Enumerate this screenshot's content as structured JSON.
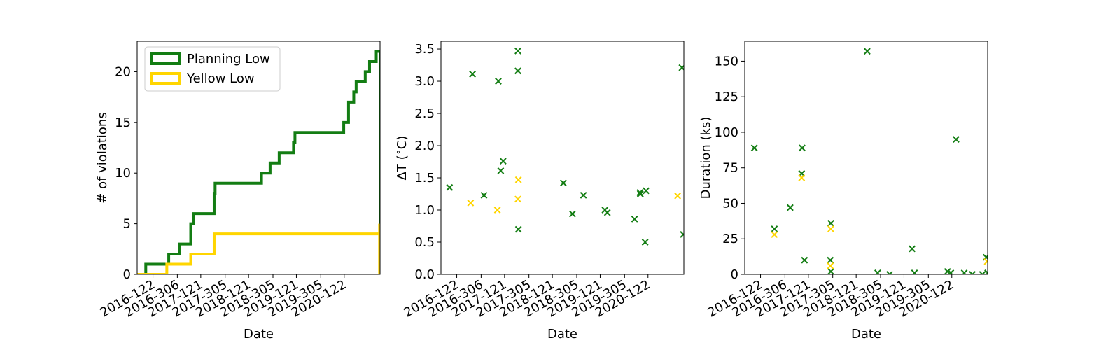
{
  "chart_data": [
    {
      "type": "line",
      "step": true,
      "xlabel": "Date",
      "ylabel": "# of violations",
      "xlim": [
        2016.0,
        2021.08
      ],
      "ylim": [
        0,
        23
      ],
      "xticks": [
        {
          "value": 2016.33,
          "label": "2016-122"
        },
        {
          "value": 2016.84,
          "label": "2016-306"
        },
        {
          "value": 2017.33,
          "label": "2017-121"
        },
        {
          "value": 2017.84,
          "label": "2017-305"
        },
        {
          "value": 2018.33,
          "label": "2018-121"
        },
        {
          "value": 2018.84,
          "label": "2018-305"
        },
        {
          "value": 2019.33,
          "label": "2019-121"
        },
        {
          "value": 2019.84,
          "label": "2019-305"
        },
        {
          "value": 2020.33,
          "label": "2020-122"
        }
      ],
      "yticks": [
        0,
        5,
        10,
        15,
        20
      ],
      "legend": {
        "placement": "top-left"
      },
      "series": [
        {
          "name": "Planning Low",
          "color": "#137d13",
          "x": [
            2016.0,
            2016.18,
            2016.66,
            2016.88,
            2017.12,
            2017.18,
            2017.61,
            2017.63,
            2018.6,
            2018.78,
            2018.97,
            2019.27,
            2019.3,
            2020.32,
            2020.42,
            2020.53,
            2020.58,
            2020.64,
            2020.77,
            2020.82,
            2020.86,
            2021.0,
            2021.08,
            2021.08
          ],
          "y": [
            0,
            1,
            2,
            3,
            5,
            6,
            8,
            9,
            10,
            11,
            12,
            13,
            14,
            15,
            17,
            18,
            19,
            19,
            20,
            20,
            21,
            22,
            22,
            0
          ]
        },
        {
          "name": "Yellow Low",
          "color": "#ffd500",
          "x": [
            2016.0,
            2016.62,
            2017.12,
            2017.61,
            2021.07,
            2021.07
          ],
          "y": [
            0,
            1,
            2,
            4,
            5,
            0
          ]
        }
      ]
    },
    {
      "type": "scatter",
      "marker": "x",
      "xlabel": "Date",
      "ylabel": "ΔT ($^\\circ$C)",
      "xlim": [
        2016.0,
        2021.08
      ],
      "ylim": [
        0,
        3.62
      ],
      "xticks": [
        {
          "value": 2016.33,
          "label": "2016-122"
        },
        {
          "value": 2016.84,
          "label": "2016-306"
        },
        {
          "value": 2017.33,
          "label": "2017-121"
        },
        {
          "value": 2017.84,
          "label": "2017-305"
        },
        {
          "value": 2018.33,
          "label": "2018-121"
        },
        {
          "value": 2018.84,
          "label": "2018-305"
        },
        {
          "value": 2019.33,
          "label": "2019-121"
        },
        {
          "value": 2019.84,
          "label": "2019-305"
        },
        {
          "value": 2020.33,
          "label": "2020-122"
        }
      ],
      "yticks": [
        0.0,
        0.5,
        1.0,
        1.5,
        2.0,
        2.5,
        3.0,
        3.5
      ],
      "series": [
        {
          "color": "#137d13",
          "x": [
            2016.18,
            2016.66,
            2016.9,
            2017.2,
            2017.25,
            2017.3,
            2017.61,
            2017.61,
            2017.62,
            2018.56,
            2018.75,
            2018.98,
            2019.43,
            2019.48,
            2020.05,
            2020.16,
            2020.17,
            2020.29,
            2020.27,
            2021.04,
            2021.07
          ],
          "y": [
            1.35,
            3.11,
            1.23,
            3.0,
            1.61,
            1.76,
            3.47,
            3.16,
            0.7,
            1.42,
            0.94,
            1.23,
            1.0,
            0.96,
            0.86,
            1.27,
            1.25,
            1.3,
            0.5,
            3.21,
            0.62
          ]
        },
        {
          "color": "#ffd500",
          "x": [
            2016.62,
            2017.18,
            2017.62,
            2017.61,
            2020.95
          ],
          "y": [
            1.11,
            1.0,
            1.47,
            1.17,
            1.22
          ]
        }
      ]
    },
    {
      "type": "scatter",
      "marker": "x",
      "xlabel": "Date",
      "ylabel": "Duration (ks)",
      "xlim": [
        2016.0,
        2021.08
      ],
      "ylim": [
        0,
        164
      ],
      "xticks": [
        {
          "value": 2016.33,
          "label": "2016-122"
        },
        {
          "value": 2016.84,
          "label": "2016-306"
        },
        {
          "value": 2017.33,
          "label": "2017-121"
        },
        {
          "value": 2017.84,
          "label": "2017-305"
        },
        {
          "value": 2018.33,
          "label": "2018-121"
        },
        {
          "value": 2018.84,
          "label": "2018-305"
        },
        {
          "value": 2019.33,
          "label": "2019-121"
        },
        {
          "value": 2019.84,
          "label": "2019-305"
        },
        {
          "value": 2020.33,
          "label": "2020-122"
        }
      ],
      "yticks": [
        0,
        25,
        50,
        75,
        100,
        125,
        150
      ],
      "series": [
        {
          "color": "#137d13",
          "x": [
            2016.2,
            2016.62,
            2016.95,
            2017.2,
            2017.19,
            2017.25,
            2017.8,
            2017.79,
            2017.8,
            2018.56,
            2018.78,
            2019.03,
            2019.5,
            2019.55,
            2020.24,
            2020.31,
            2020.42,
            2020.59,
            2020.76,
            2020.97,
            2021.05,
            2021.08
          ],
          "y": [
            89,
            32,
            47,
            89,
            71,
            10,
            36,
            10,
            2,
            157,
            1,
            0,
            18,
            1,
            2,
            1,
            95,
            1,
            0,
            0,
            12,
            1
          ]
        },
        {
          "color": "#ffd500",
          "x": [
            2016.62,
            2017.19,
            2017.8,
            2017.79,
            2021.07
          ],
          "y": [
            28,
            68,
            32,
            6,
            9
          ]
        }
      ]
    }
  ]
}
